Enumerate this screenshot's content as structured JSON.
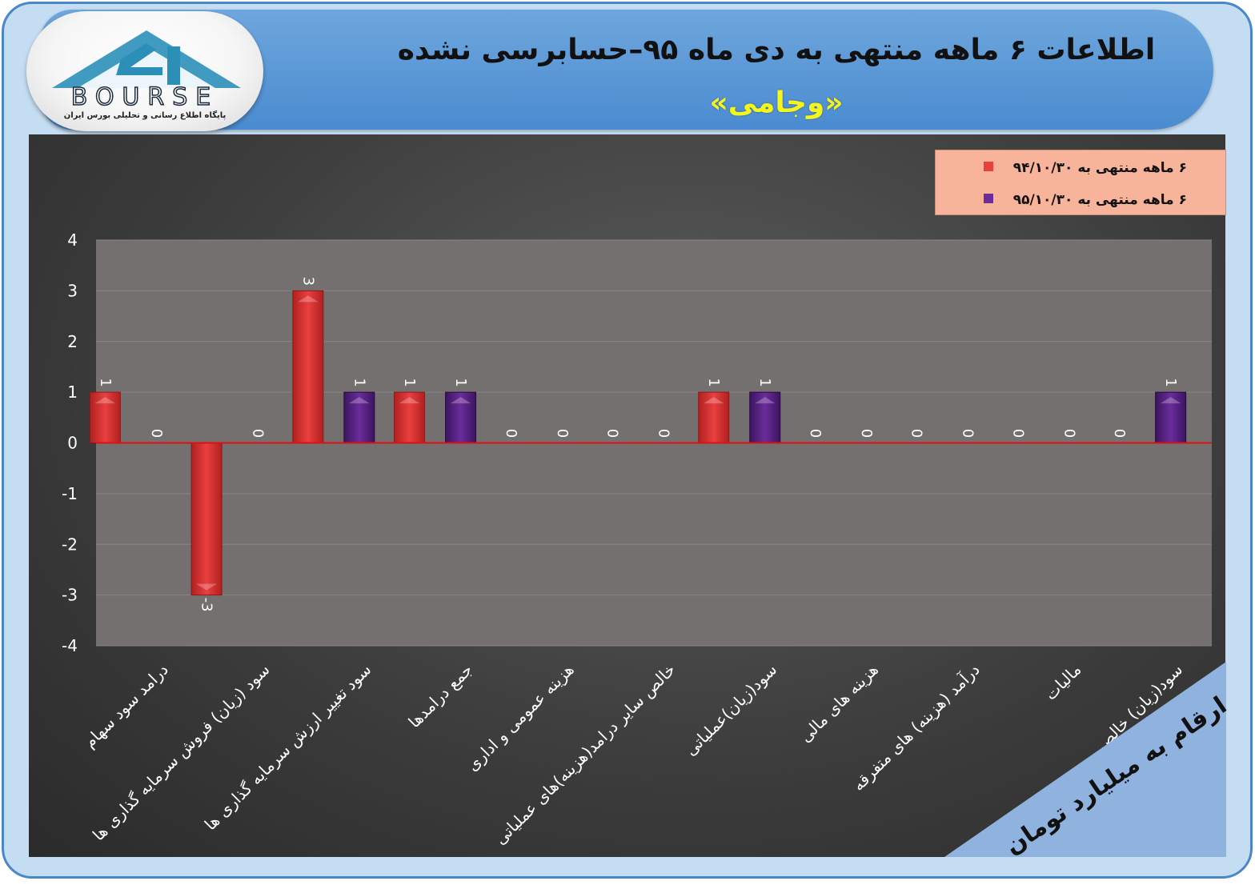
{
  "header": {
    "title": "اطلاعات ۶ ماهه منتهی به دی ماه ۹۵–حسابرسی نشده",
    "subtitle": "«وجامی»"
  },
  "logo": {
    "wordmark": "BOURSE",
    "tagline": "پایگاه اطلاع رسانی و تحلیلی بورس ایران",
    "color": "#2c8fb8"
  },
  "units_note": "ارقام به میلیارد تومان",
  "colors": {
    "series1": "#e8403f",
    "series2": "#6a2d9a",
    "zero_line": "#e01010",
    "plot_bg": "#757070",
    "legend_bg": "#f7b49a"
  },
  "chart_data": {
    "type": "bar",
    "categories": [
      "درامد سود سهام",
      "سود (زیان) فروش سرمایه گذاری ها",
      "سود تغییر ارزش سرمایه گذاری ها",
      "جمع درامدها",
      "هزینه عمومی و اداری",
      "خالص سایر درامد(هزینه)های عملیاتی",
      "سود(زیان)عملیاتی",
      "هزینه های مالی",
      "درآمد (هزینه) های متفرقه",
      "مالیات",
      "سود(زیان) خالص"
    ],
    "series": [
      {
        "name": "۶ ماهه منتهی به ۹۴/۱۰/۳۰",
        "values": [
          1,
          -3,
          3,
          1,
          0,
          0,
          1,
          0,
          0,
          0,
          0
        ]
      },
      {
        "name": "۶ ماهه منتهی به ۹۵/۱۰/۳۰",
        "values": [
          0,
          0,
          1,
          1,
          0,
          0,
          1,
          0,
          0,
          0,
          1
        ]
      }
    ],
    "ylim": [
      -4,
      4
    ],
    "yticks": [
      4,
      3,
      2,
      1,
      0,
      -1,
      -2,
      -3,
      -4
    ],
    "grid": true,
    "legend_position": "top-right"
  }
}
